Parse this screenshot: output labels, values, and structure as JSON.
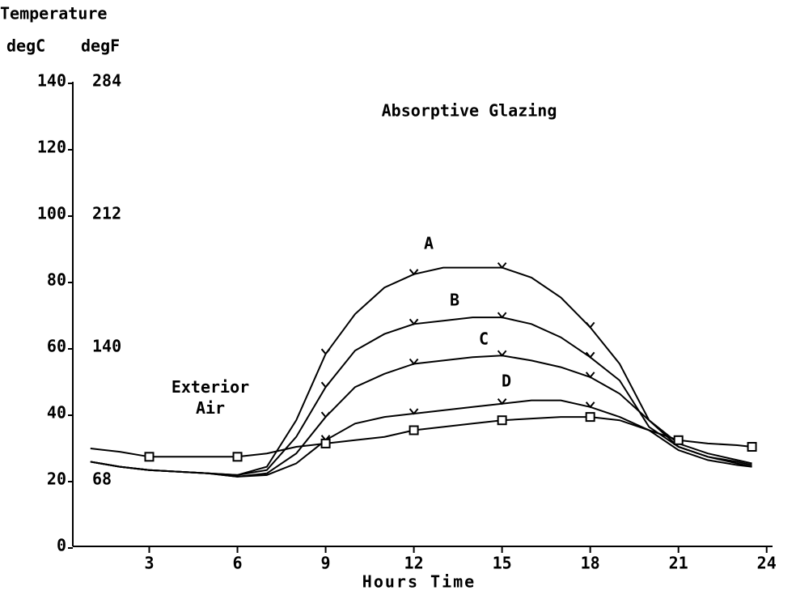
{
  "chart_data": {
    "type": "line",
    "title": "Absorptive Glazing",
    "y_axis_title": "Temperature",
    "y_unit_label": "degC",
    "y2_unit_label": "degF",
    "x_axis_title": "Hours Time",
    "x": [
      1,
      2,
      3,
      4,
      5,
      6,
      7,
      8,
      9,
      10,
      11,
      12,
      13,
      14,
      15,
      16,
      17,
      18,
      19,
      20,
      21,
      22,
      23,
      23.5
    ],
    "series": [
      {
        "name": "A",
        "color": "#000000",
        "marker": "v",
        "values": [
          25.5,
          24,
          23,
          22.5,
          22,
          21.5,
          24,
          38,
          58,
          70,
          78,
          82,
          84,
          84,
          84,
          81,
          75,
          66,
          55,
          38,
          31,
          28,
          26,
          25
        ]
      },
      {
        "name": "B",
        "color": "#000000",
        "marker": "v",
        "values": [
          25.5,
          24,
          23,
          22.5,
          22,
          21.5,
          23,
          33,
          48,
          59,
          64,
          67,
          68,
          69,
          69,
          67,
          63,
          57,
          50,
          36,
          30,
          27,
          25.5,
          24.5
        ]
      },
      {
        "name": "C",
        "color": "#000000",
        "marker": "v",
        "values": [
          25.5,
          24,
          23,
          22.5,
          22,
          21,
          22,
          28,
          39,
          48,
          52,
          55,
          56,
          57,
          57.5,
          56,
          54,
          51,
          46,
          38,
          30,
          27,
          25,
          24
        ]
      },
      {
        "name": "D",
        "color": "#000000",
        "marker": "v",
        "values": [
          25.5,
          24,
          23,
          22.5,
          22,
          21,
          21.5,
          25,
          32,
          37,
          39,
          40,
          41,
          42,
          43,
          44,
          44,
          42,
          39,
          35,
          29,
          26,
          24.5,
          24
        ]
      },
      {
        "name": "Exterior Air",
        "color": "#000000",
        "marker": "square",
        "values": [
          29.5,
          28.5,
          27,
          27,
          27,
          27,
          28,
          30,
          31,
          32,
          33,
          35,
          36,
          37,
          38,
          38.5,
          39,
          39,
          38,
          35,
          32,
          31,
          30.5,
          30
        ]
      }
    ],
    "xlim": [
      0.4,
      24.2
    ],
    "xticks": [
      3,
      6,
      9,
      12,
      15,
      18,
      21,
      24
    ],
    "ylim": [
      0,
      140
    ],
    "yticks": [
      0,
      20,
      40,
      60,
      80,
      100,
      120,
      140
    ],
    "y2lim": [
      32,
      284
    ],
    "y2ticks": [
      68,
      140,
      212,
      284
    ]
  }
}
